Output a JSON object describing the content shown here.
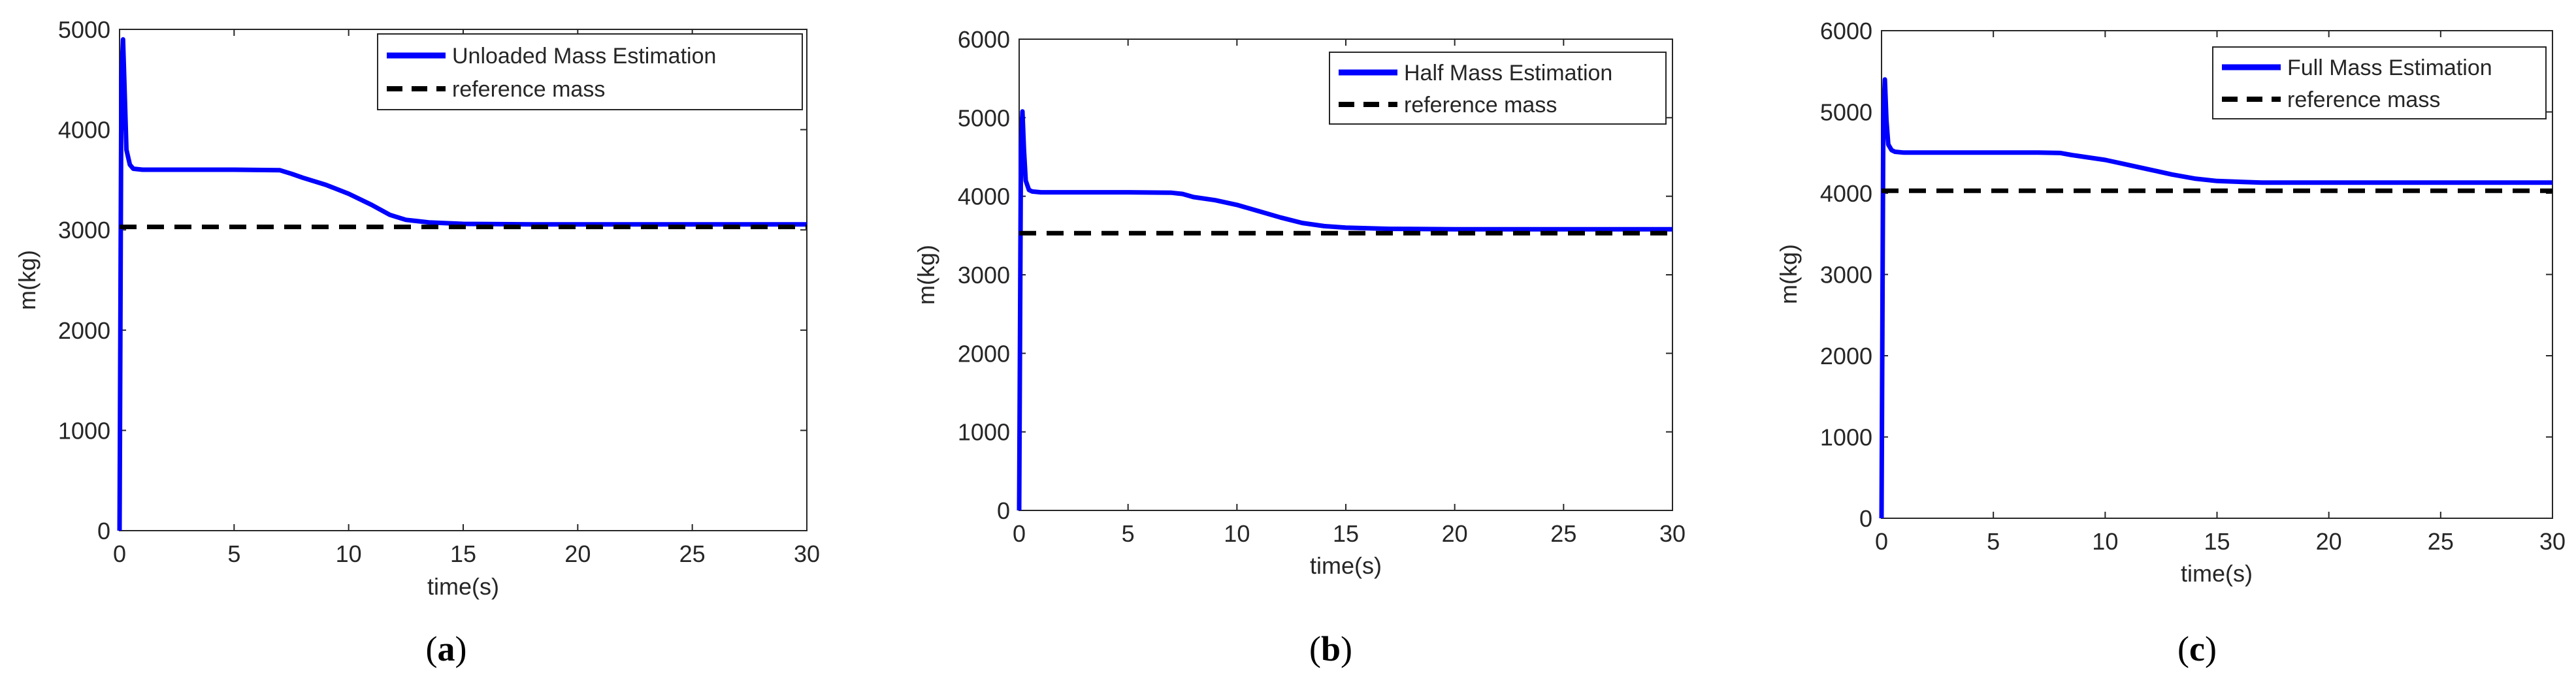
{
  "colors": {
    "estimate": "#0000ff",
    "reference": "#000000",
    "axis": "#262626"
  },
  "chart_data": [
    {
      "type": "line",
      "panel_label": "a",
      "xlabel": "time(s)",
      "ylabel": "m(kg)",
      "xlim": [
        0,
        30
      ],
      "ylim": [
        0,
        5000
      ],
      "xticks": [
        0,
        5,
        10,
        15,
        20,
        25,
        30
      ],
      "yticks": [
        0,
        1000,
        2000,
        3000,
        4000,
        5000
      ],
      "legend_position": "top-right",
      "series": [
        {
          "name": "Unloaded Mass Estimation",
          "style": "solid",
          "x": [
            0,
            0.08,
            0.15,
            0.22,
            0.3,
            0.45,
            0.6,
            1,
            3,
            5,
            7,
            7.5,
            8,
            9,
            10,
            11,
            11.8,
            12.5,
            13.5,
            15,
            18,
            20,
            25,
            30
          ],
          "y": [
            0,
            4500,
            4900,
            4400,
            3800,
            3650,
            3610,
            3600,
            3600,
            3600,
            3595,
            3560,
            3520,
            3450,
            3360,
            3250,
            3150,
            3100,
            3075,
            3060,
            3055,
            3055,
            3055,
            3055
          ]
        },
        {
          "name": "reference mass",
          "style": "dashed",
          "x": [
            0,
            30
          ],
          "y": [
            3030,
            3030
          ]
        }
      ]
    },
    {
      "type": "line",
      "panel_label": "b",
      "xlabel": "time(s)",
      "ylabel": "m(kg)",
      "xlim": [
        0,
        30
      ],
      "ylim": [
        0,
        6000
      ],
      "xticks": [
        0,
        5,
        10,
        15,
        20,
        25,
        30
      ],
      "yticks": [
        0,
        1000,
        2000,
        3000,
        4000,
        5000,
        6000
      ],
      "legend_position": "top-right",
      "series": [
        {
          "name": "Half Mass Estimation",
          "style": "solid",
          "x": [
            0,
            0.08,
            0.15,
            0.22,
            0.3,
            0.45,
            0.6,
            1,
            3,
            5,
            7,
            7.5,
            8,
            9,
            10,
            11,
            12,
            13,
            14,
            15,
            17,
            20,
            25,
            30
          ],
          "y": [
            0,
            4600,
            5080,
            4600,
            4200,
            4080,
            4060,
            4050,
            4050,
            4050,
            4045,
            4030,
            3990,
            3950,
            3890,
            3810,
            3730,
            3660,
            3620,
            3600,
            3585,
            3580,
            3580,
            3580
          ]
        },
        {
          "name": "reference mass",
          "style": "dashed",
          "x": [
            0,
            30
          ],
          "y": [
            3530,
            3530
          ]
        }
      ]
    },
    {
      "type": "line",
      "panel_label": "c",
      "xlabel": "time(s)",
      "ylabel": "m(kg)",
      "xlim": [
        0,
        30
      ],
      "ylim": [
        0,
        6000
      ],
      "xticks": [
        0,
        5,
        10,
        15,
        20,
        25,
        30
      ],
      "yticks": [
        0,
        1000,
        2000,
        3000,
        4000,
        5000,
        6000
      ],
      "legend_position": "top-right",
      "series": [
        {
          "name": "Full Mass Estimation",
          "style": "solid",
          "x": [
            0,
            0.08,
            0.15,
            0.22,
            0.3,
            0.45,
            0.6,
            1,
            3,
            5,
            7,
            8,
            8.5,
            9,
            10,
            11,
            12,
            13,
            14,
            15,
            17,
            20,
            25,
            30
          ],
          "y": [
            0,
            4900,
            5400,
            4900,
            4600,
            4530,
            4510,
            4500,
            4500,
            4500,
            4500,
            4495,
            4470,
            4450,
            4410,
            4350,
            4290,
            4230,
            4180,
            4150,
            4130,
            4130,
            4130,
            4130
          ]
        },
        {
          "name": "reference mass",
          "style": "dashed",
          "x": [
            0,
            30
          ],
          "y": [
            4030,
            4030
          ]
        }
      ]
    }
  ]
}
